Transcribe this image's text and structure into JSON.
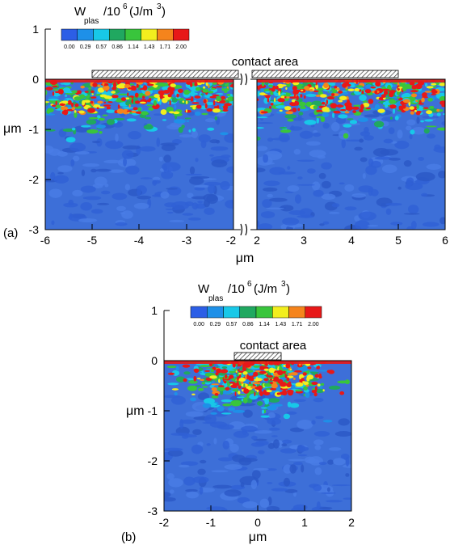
{
  "chart_data": [
    {
      "type": "heatmap",
      "panel_label": "(a)",
      "xlabel": "μm",
      "ylabel": "μm",
      "x_ranges": [
        [
          -6,
          -2
        ],
        [
          2,
          6
        ]
      ],
      "xlim_left": [
        -6,
        -2
      ],
      "xlim_right": [
        2,
        6
      ],
      "ylim": [
        -3,
        1
      ],
      "x_ticks_left": [
        "-6",
        "-5",
        "-4",
        "-3",
        "-2"
      ],
      "x_ticks_right": [
        "2",
        "3",
        "4",
        "5",
        "6"
      ],
      "y_ticks": [
        "1",
        "0",
        "-1",
        "-2",
        "-3"
      ],
      "contact_area_label": "contact area",
      "contact_area": [
        [
          -5,
          -2
        ],
        [
          2,
          5
        ]
      ],
      "colorbar": {
        "title_main": "W",
        "title_sub": "plas",
        "title_rest": "/10",
        "title_sup": "6",
        "title_unit": "(J/m",
        "title_unit_sup": "3",
        "title_close": ")",
        "ticks": [
          "0.00",
          "0.29",
          "0.57",
          "0.86",
          "1.14",
          "1.43",
          "1.71",
          "2.00"
        ],
        "colors": [
          "#2c5ee6",
          "#1e90e8",
          "#18c8e8",
          "#20a860",
          "#39c53c",
          "#f2ee1e",
          "#f5841c",
          "#e81818"
        ]
      },
      "background_color": "#3d6fd8",
      "field_description_levels": {
        "surface": "high (red) within 0 to -0.2 μm",
        "band": "mixed green/cyan/yellow/red 0 to -1 μm",
        "deep": "low (blue) below -1.5 μm"
      }
    },
    {
      "type": "heatmap",
      "panel_label": "(b)",
      "xlabel": "μm",
      "ylabel": "μm",
      "xlim": [
        -2,
        2
      ],
      "ylim": [
        -3,
        1
      ],
      "x_ticks": [
        "-2",
        "-1",
        "0",
        "1",
        "2"
      ],
      "y_ticks": [
        "1",
        "0",
        "-1",
        "-2",
        "-3"
      ],
      "contact_area_label": "contact area",
      "contact_area": [
        -0.5,
        0.5
      ],
      "colorbar": {
        "title_main": "W",
        "title_sub": "plas",
        "title_rest": "/10",
        "title_sup": "6",
        "title_unit": "(J/m",
        "title_unit_sup": "3",
        "title_close": ")",
        "ticks": [
          "0.00",
          "0.29",
          "0.57",
          "0.86",
          "1.14",
          "1.43",
          "1.71",
          "2.00"
        ],
        "colors": [
          "#2c5ee6",
          "#1e90e8",
          "#18c8e8",
          "#20a860",
          "#39c53c",
          "#f2ee1e",
          "#f5841c",
          "#e81818"
        ]
      },
      "background_color": "#3d6fd8"
    }
  ]
}
